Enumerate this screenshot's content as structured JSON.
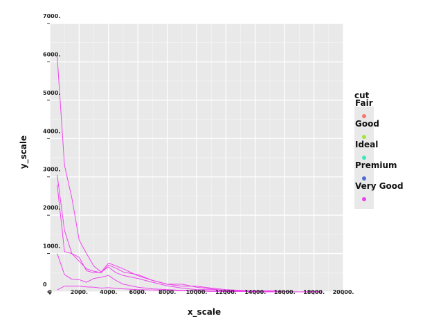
{
  "chart_data": {
    "type": "line",
    "title": "",
    "xlabel": "x_scale",
    "ylabel": "y_scale",
    "xlim": [
      0,
      20000
    ],
    "ylim": [
      0,
      7000
    ],
    "x_ticks": [
      {
        "value": 0,
        "label": "0"
      },
      {
        "value": 2000,
        "label": "2000."
      },
      {
        "value": 4000,
        "label": "4000."
      },
      {
        "value": 6000,
        "label": "6000."
      },
      {
        "value": 8000,
        "label": "8000."
      },
      {
        "value": 10000,
        "label": "10000."
      },
      {
        "value": 12000,
        "label": "12000."
      },
      {
        "value": 14000,
        "label": "14000."
      },
      {
        "value": 16000,
        "label": "16000."
      },
      {
        "value": 18000,
        "label": "18000."
      },
      {
        "value": 20000,
        "label": "20000."
      }
    ],
    "y_ticks": [
      {
        "value": 0,
        "label": "0"
      },
      {
        "value": 1000,
        "label": "1000."
      },
      {
        "value": 2000,
        "label": "2000."
      },
      {
        "value": 3000,
        "label": "3000."
      },
      {
        "value": 4000,
        "label": "4000."
      },
      {
        "value": 5000,
        "label": "5000."
      },
      {
        "value": 6000,
        "label": "6000."
      },
      {
        "value": 7000,
        "label": "7000."
      }
    ],
    "grid": true,
    "legend": {
      "title": "cut",
      "position": "right",
      "entries": [
        {
          "label": "Fair",
          "color": "#f8766d"
        },
        {
          "label": "Good",
          "color": "#a3e635"
        },
        {
          "label": "Ideal",
          "color": "#3ee6c0"
        },
        {
          "label": "Premium",
          "color": "#4f6bd8"
        },
        {
          "label": "Very Good",
          "color": "#ee44ee"
        }
      ]
    },
    "line_color": "#ee44ee",
    "series": [
      {
        "name": "Ideal",
        "x": [
          500,
          1000,
          1500,
          2000,
          2500,
          3000,
          3500,
          4000,
          4500,
          5000,
          6000,
          7000,
          8000,
          9000,
          10000,
          11000,
          12000,
          13000,
          14000,
          15000,
          16000,
          17000,
          18000,
          18500
        ],
        "y": [
          6150,
          3300,
          2450,
          1350,
          1000,
          670,
          520,
          750,
          680,
          600,
          420,
          300,
          200,
          200,
          120,
          80,
          30,
          40,
          20,
          10,
          0,
          0,
          0,
          0
        ]
      },
      {
        "name": "Premium",
        "x": [
          500,
          1000,
          1500,
          2000,
          2500,
          3000,
          3500,
          4000,
          4500,
          5000,
          6000,
          7000,
          8000,
          9000,
          10000,
          11000,
          12000,
          13000,
          14000,
          15000,
          16000,
          17000,
          18000,
          18500
        ],
        "y": [
          3050,
          1600,
          1000,
          800,
          600,
          540,
          500,
          700,
          620,
          520,
          450,
          300,
          200,
          150,
          150,
          100,
          60,
          40,
          20,
          30,
          10,
          0,
          10,
          0
        ]
      },
      {
        "name": "Very Good",
        "x": [
          500,
          1000,
          1500,
          2000,
          2500,
          3000,
          3500,
          4000,
          4500,
          5000,
          6000,
          7000,
          8000,
          9000,
          10000,
          11000,
          12000,
          13000,
          14000,
          15000,
          16000,
          17000,
          18000,
          18500
        ],
        "y": [
          2800,
          1050,
          1000,
          900,
          550,
          500,
          520,
          650,
          500,
          430,
          350,
          250,
          160,
          100,
          60,
          60,
          40,
          20,
          20,
          0,
          0,
          0,
          0,
          0
        ]
      },
      {
        "name": "Good",
        "x": [
          500,
          1000,
          1500,
          2000,
          2500,
          3000,
          3500,
          4000,
          4500,
          5000,
          6000,
          7000,
          8000,
          9000,
          10000,
          11000,
          12000,
          13000,
          14000,
          15000,
          16000,
          17000,
          18000,
          18500
        ],
        "y": [
          1000,
          450,
          330,
          320,
          250,
          350,
          380,
          430,
          300,
          200,
          120,
          80,
          60,
          40,
          30,
          20,
          10,
          10,
          0,
          0,
          0,
          0,
          0,
          0
        ]
      },
      {
        "name": "Fair",
        "x": [
          500,
          1000,
          1500,
          2000,
          2500,
          3000,
          3500,
          4000,
          4500,
          5000,
          6000,
          7000,
          8000,
          9000,
          10000,
          11000,
          12000,
          13000,
          14000,
          15000,
          16000,
          17000,
          18000,
          18500
        ],
        "y": [
          50,
          150,
          150,
          150,
          130,
          120,
          100,
          110,
          90,
          80,
          60,
          50,
          40,
          30,
          20,
          10,
          10,
          10,
          0,
          0,
          0,
          0,
          0,
          0
        ]
      }
    ]
  }
}
